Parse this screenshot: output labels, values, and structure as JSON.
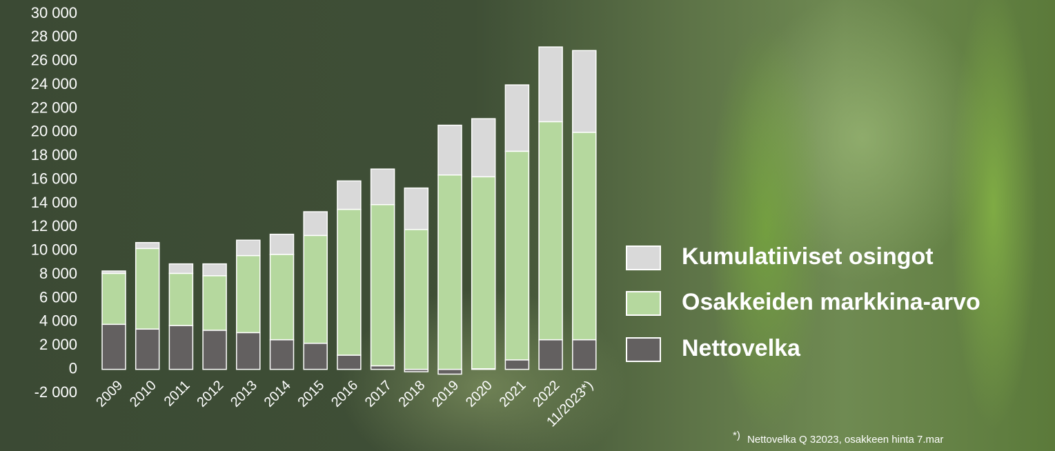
{
  "chart_data": {
    "type": "stacked_bar",
    "categories": [
      "2009",
      "2010",
      "2011",
      "2012",
      "2013",
      "2014",
      "2015",
      "2016",
      "2017",
      "2018",
      "2019",
      "2020",
      "2021",
      "2022",
      "11/2023*)"
    ],
    "series": [
      {
        "name": "Nettovelka",
        "color": "#636060",
        "values": [
          3800,
          3400,
          3700,
          3300,
          3100,
          2500,
          2200,
          1200,
          300,
          -200,
          -400,
          50,
          800,
          2500,
          2500
        ]
      },
      {
        "name": "Osakkeiden markkina-arvo",
        "color": "#b5d89e",
        "values": [
          4300,
          6800,
          4400,
          4600,
          6500,
          7200,
          9100,
          12300,
          13600,
          11800,
          16400,
          16200,
          17600,
          18400,
          17500
        ]
      },
      {
        "name": "Kumulatiiviset osingot",
        "color": "#d9d9d9",
        "values": [
          200,
          500,
          800,
          1000,
          1300,
          1700,
          2000,
          2400,
          3000,
          3500,
          4200,
          4900,
          5600,
          6300,
          6900
        ]
      }
    ],
    "ylim": [
      -2000,
      30000
    ],
    "yticks": [
      {
        "value": -2000,
        "label": "-2 000"
      },
      0,
      {
        "value": 2000,
        "label": "2 000"
      },
      {
        "value": 4000,
        "label": "4 000"
      },
      {
        "value": 6000,
        "label": "6 000"
      },
      {
        "value": 8000,
        "label": "8 000"
      },
      {
        "value": 10000,
        "label": "10 000"
      },
      {
        "value": 12000,
        "label": "12 000"
      },
      {
        "value": 14000,
        "label": "14 000"
      },
      {
        "value": 16000,
        "label": "16 000"
      },
      {
        "value": 18000,
        "label": "18 000"
      },
      {
        "value": 20000,
        "label": "20 000"
      },
      {
        "value": 22000,
        "label": "22 000"
      },
      {
        "value": 24000,
        "label": "24 000"
      },
      {
        "value": 26000,
        "label": "26 000"
      },
      {
        "value": 28000,
        "label": "28 000"
      },
      {
        "value": 30000,
        "label": "30 000"
      }
    ],
    "note_marker": "*)",
    "note": "Nettovelka Q 32023, osakkeen hinta 7.mar"
  }
}
